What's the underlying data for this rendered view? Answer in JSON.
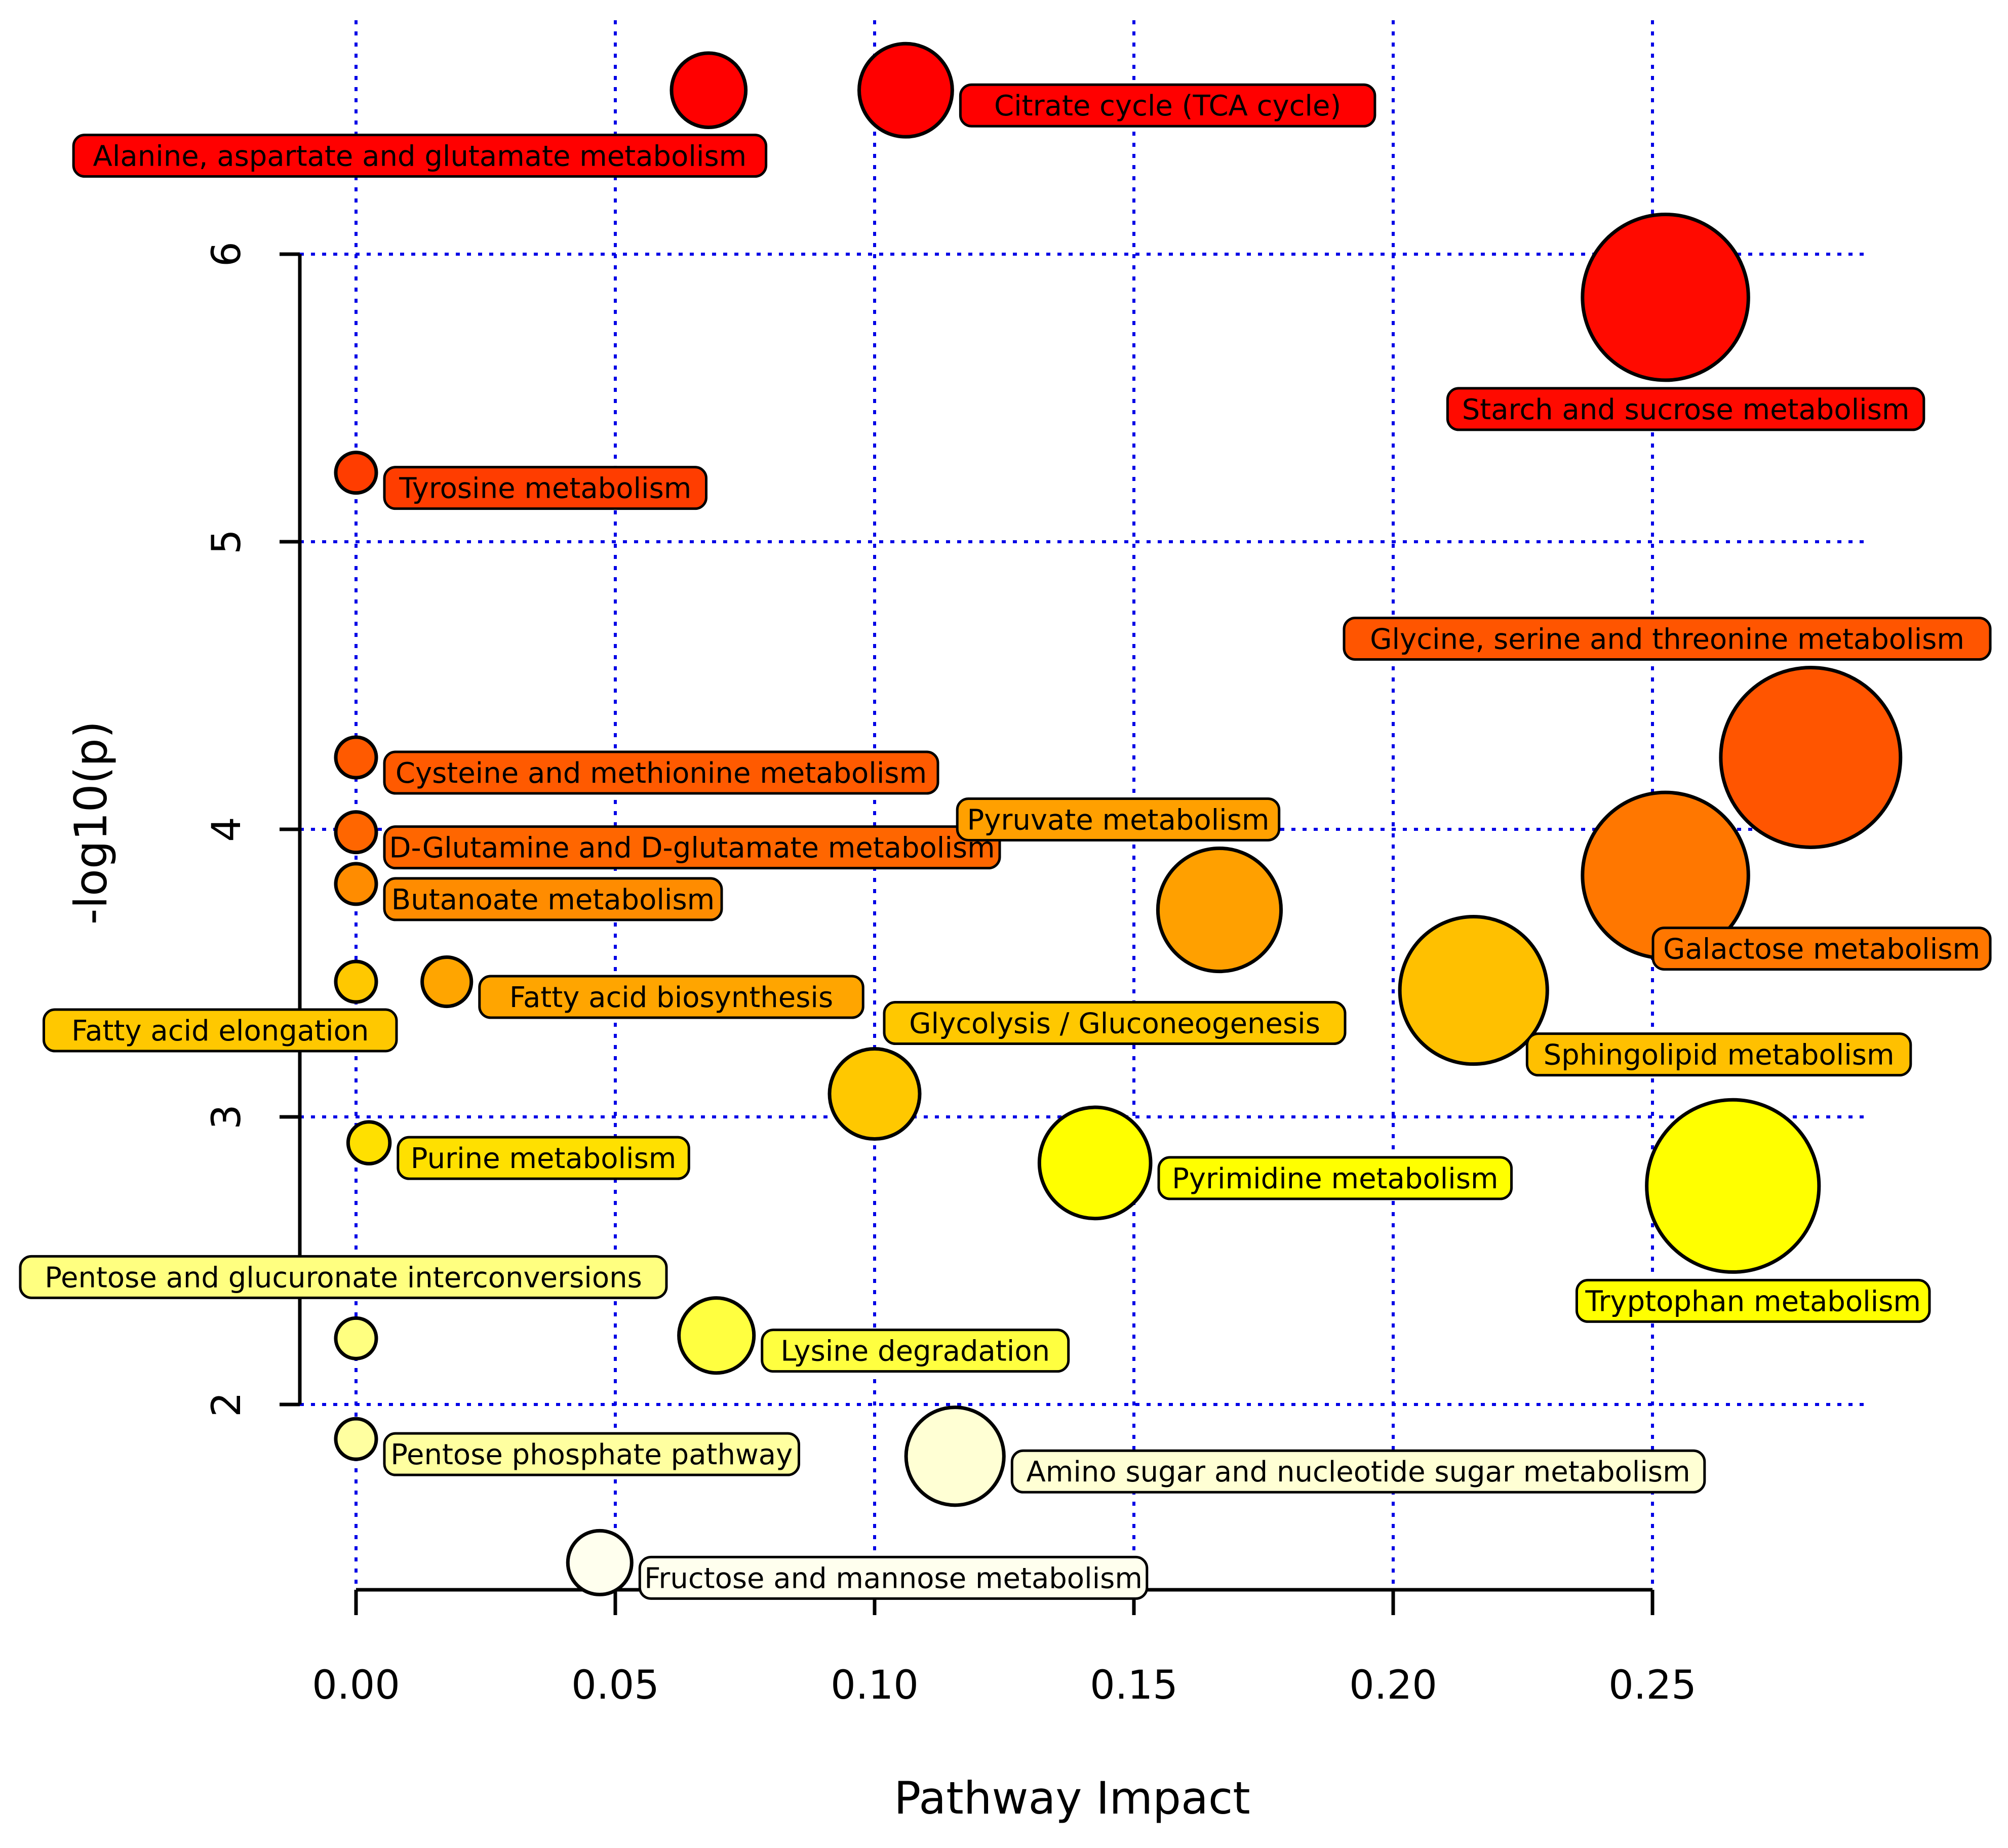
{
  "chart_data": {
    "type": "scatter",
    "title": "",
    "xlabel": "Pathway Impact",
    "ylabel": "-log10(p)",
    "xlim": [
      -0.0125,
      0.295
    ],
    "ylim": [
      1.35,
      6.92
    ],
    "xticks": [
      0.0,
      0.05,
      0.1,
      0.15,
      0.2,
      0.25
    ],
    "xtick_labels": [
      "0.00",
      "0.05",
      "0.10",
      "0.15",
      "0.20",
      "0.25"
    ],
    "yticks": [
      2,
      3,
      4,
      5,
      6
    ],
    "ytick_labels": [
      "2",
      "3",
      "4",
      "5",
      "6"
    ],
    "x_gridlines": [
      0.0,
      0.05,
      0.1,
      0.15,
      0.2,
      0.25
    ],
    "y_gridlines": [
      2,
      3,
      4,
      5,
      6
    ],
    "grid": true,
    "encoding": {
      "size": "pathway impact",
      "color": "-log10(p), yellow (low) to red (high)"
    },
    "points": [
      {
        "label": "Alanine, aspartate and glutamate metabolism",
        "x": 0.068,
        "y": 6.57,
        "color": "#ff0000",
        "label_side": "below-left"
      },
      {
        "label": "Citrate cycle (TCA cycle)",
        "x": 0.106,
        "y": 6.57,
        "color": "#ff0000",
        "label_side": "right"
      },
      {
        "label": "Starch and sucrose metabolism",
        "x": 0.2525,
        "y": 5.85,
        "color": "#ff0a00",
        "label_side": "below"
      },
      {
        "label": "Tyrosine metabolism",
        "x": 0.0,
        "y": 5.24,
        "color": "#ff3d00",
        "label_side": "right"
      },
      {
        "label": "Glycine, serine and threonine metabolism",
        "x": 0.2805,
        "y": 4.25,
        "color": "#ff5500",
        "label_side": "above"
      },
      {
        "label": "Cysteine and methionine metabolism",
        "x": 0.0,
        "y": 4.25,
        "color": "#ff5a00",
        "label_side": "right"
      },
      {
        "label": "D-Glutamine and D-glutamate metabolism",
        "x": 0.0,
        "y": 3.99,
        "color": "#ff6600",
        "label_side": "right"
      },
      {
        "label": "Pyruvate metabolism",
        "x": 0.1665,
        "y": 3.72,
        "color": "#ffa000",
        "label_side": "above"
      },
      {
        "label": "Galactose metabolism",
        "x": 0.2525,
        "y": 3.84,
        "color": "#ff7700",
        "label_side": "below-right"
      },
      {
        "label": "Butanoate metabolism",
        "x": 0.0,
        "y": 3.81,
        "color": "#ff8c00",
        "label_side": "right"
      },
      {
        "label": "Fatty acid biosynthesis",
        "x": 0.0175,
        "y": 3.47,
        "color": "#ffa500",
        "label_side": "right"
      },
      {
        "label": "Fatty acid elongation",
        "x": 0.0,
        "y": 3.47,
        "color": "#ffc800",
        "label_side": "below-left"
      },
      {
        "label": "Sphingolipid metabolism",
        "x": 0.2155,
        "y": 3.44,
        "color": "#ffc000",
        "label_side": "below-right"
      },
      {
        "label": "Glycolysis / Gluconeogenesis",
        "x": 0.1,
        "y": 3.08,
        "color": "#ffc800",
        "label_side": "above-right"
      },
      {
        "label": "Purine metabolism",
        "x": 0.0025,
        "y": 2.91,
        "color": "#ffe000",
        "label_side": "right"
      },
      {
        "label": "Pyrimidine metabolism",
        "x": 0.1425,
        "y": 2.84,
        "color": "#ffff00",
        "label_side": "right"
      },
      {
        "label": "Tryptophan metabolism",
        "x": 0.2655,
        "y": 2.76,
        "color": "#ffff00",
        "label_side": "below"
      },
      {
        "label": "Pentose and glucuronate interconversions",
        "x": 0.0,
        "y": 2.23,
        "color": "#ffff80",
        "label_side": "above-left"
      },
      {
        "label": "Lysine degradation",
        "x": 0.0695,
        "y": 2.24,
        "color": "#ffff40",
        "label_side": "right"
      },
      {
        "label": "Pentose phosphate pathway",
        "x": 0.0,
        "y": 1.88,
        "color": "#ffffa0",
        "label_side": "right"
      },
      {
        "label": "Amino sugar and nucleotide sugar metabolism",
        "x": 0.1155,
        "y": 1.82,
        "color": "#ffffd4",
        "label_side": "right"
      },
      {
        "label": "Fructose and mannose metabolism",
        "x": 0.047,
        "y": 1.45,
        "color": "#ffffee",
        "label_side": "right"
      }
    ]
  }
}
